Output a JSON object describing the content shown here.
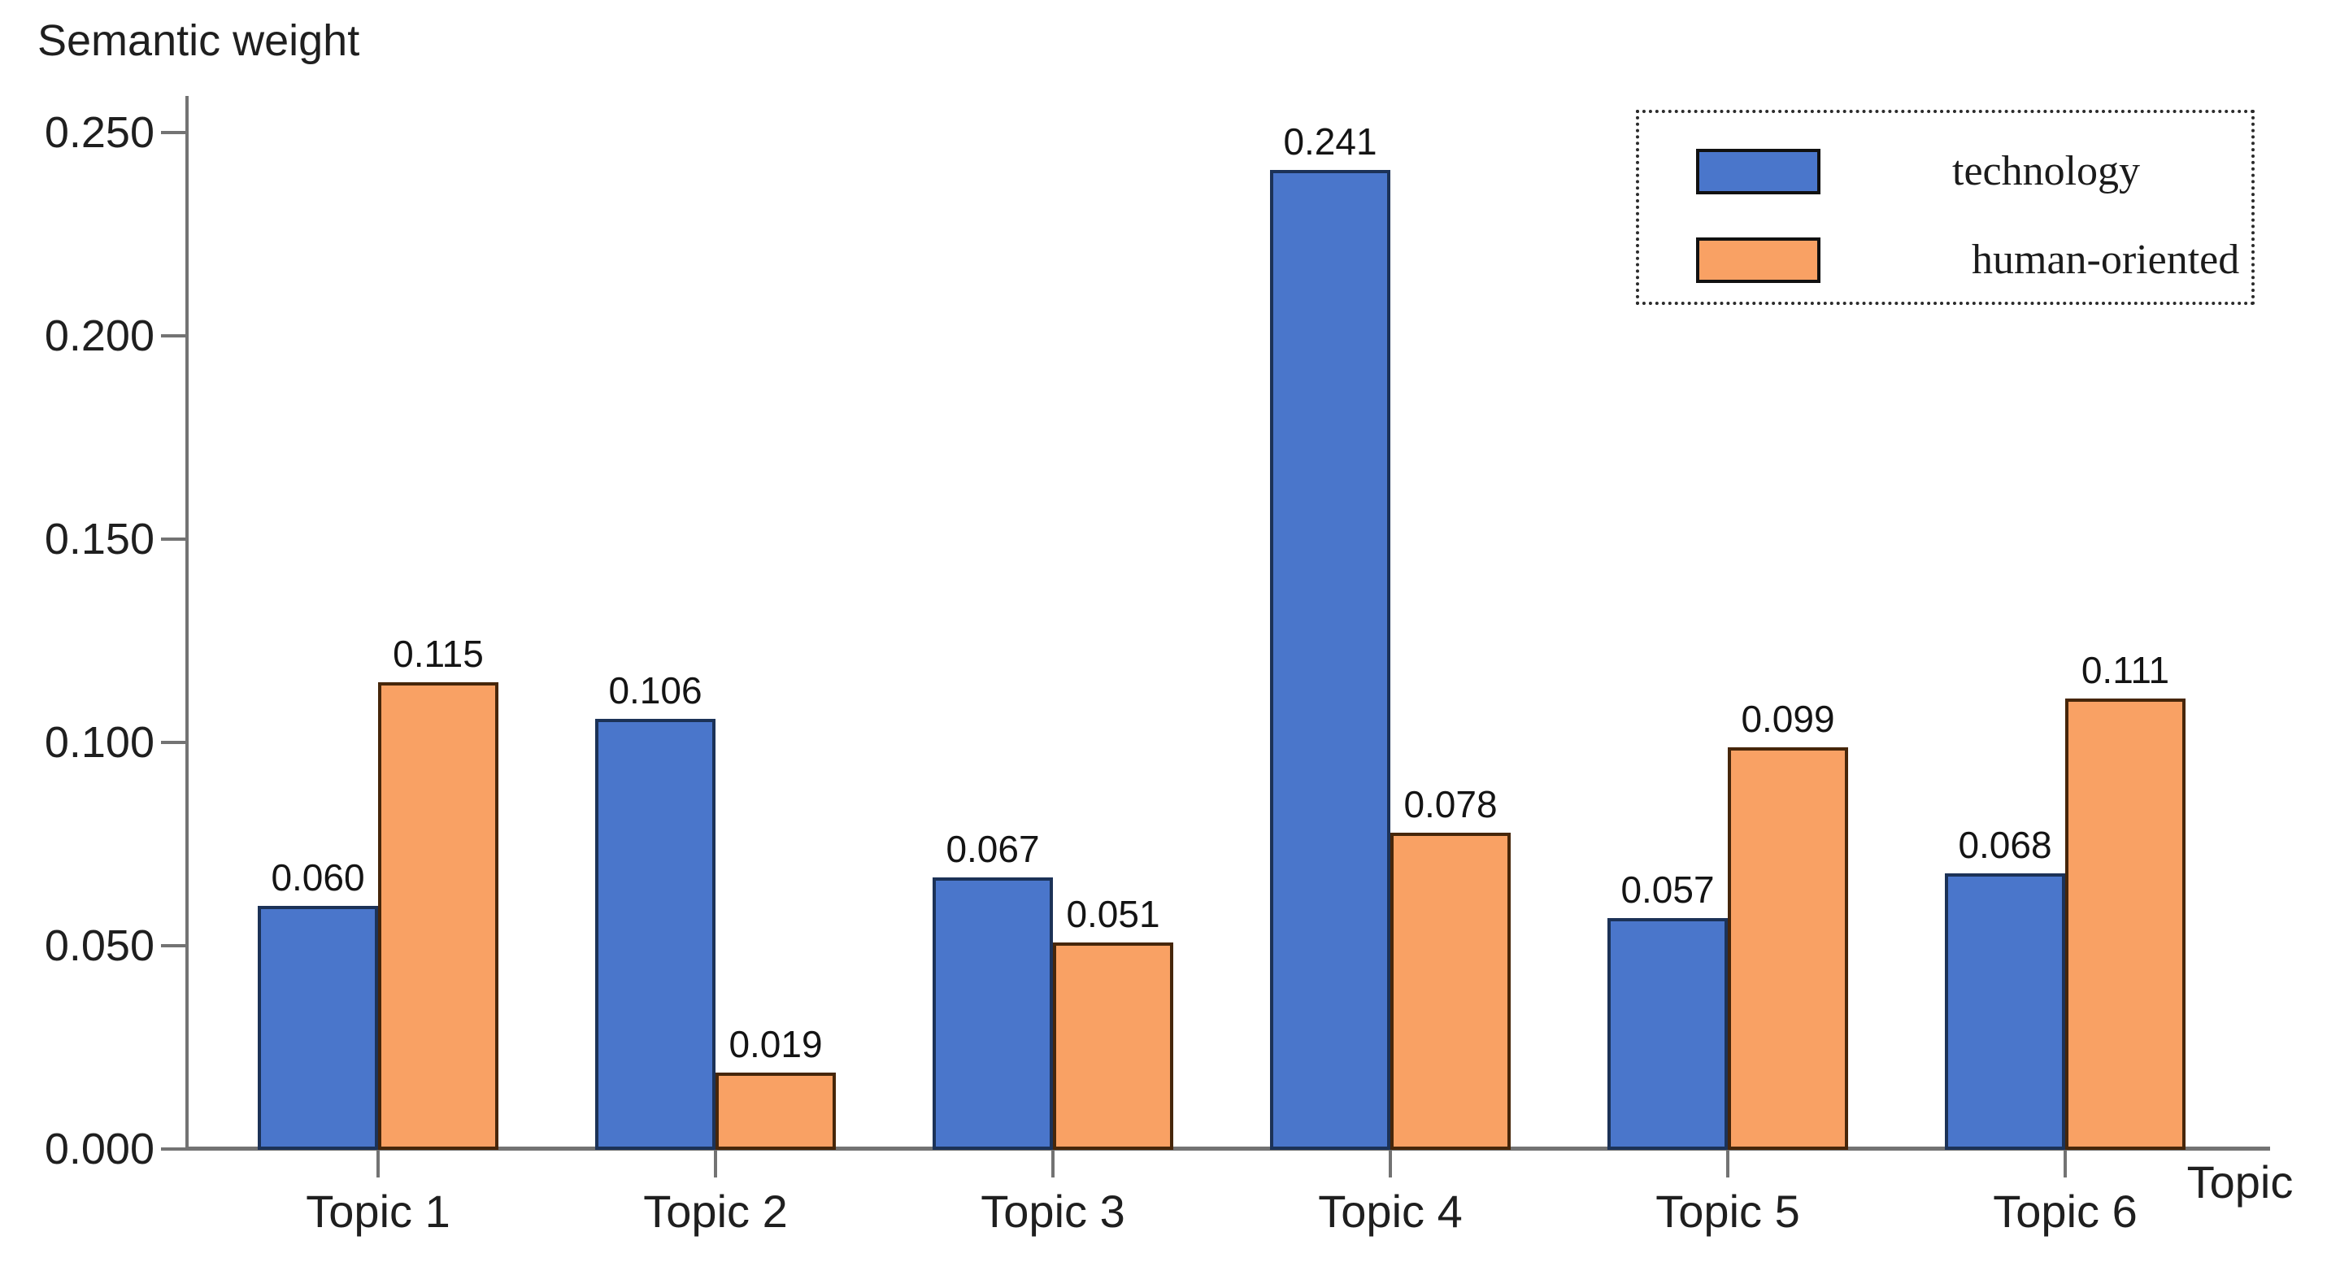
{
  "chart_data": {
    "type": "bar",
    "title": "Semantic weight",
    "ylabel": "Semantic weight",
    "xlabel": "Topic",
    "categories": [
      "Topic 1",
      "Topic 2",
      "Topic 3",
      "Topic 4",
      "Topic 5",
      "Topic 6"
    ],
    "series": [
      {
        "name": "technology",
        "color": "#4a76cb",
        "border_color": "#1c3257",
        "values": [
          0.06,
          0.106,
          0.067,
          0.241,
          0.057,
          0.068
        ]
      },
      {
        "name": "human-oriented",
        "color": "#f9a164",
        "border_color": "#46260a",
        "values": [
          0.115,
          0.019,
          0.051,
          0.078,
          0.099,
          0.111
        ]
      }
    ],
    "ylim": [
      0,
      0.25
    ],
    "yticks": [
      {
        "value": 0.0,
        "label": "0.000"
      },
      {
        "value": 0.05,
        "label": "0.050"
      },
      {
        "value": 0.1,
        "label": "0.100"
      },
      {
        "value": 0.15,
        "label": "0.150"
      },
      {
        "value": 0.2,
        "label": "0.200"
      },
      {
        "value": 0.25,
        "label": "0.250"
      }
    ],
    "value_label_decimals": 3,
    "grid": false,
    "legend": {
      "position": "top-right",
      "border_style": "dotted"
    },
    "axis_color": "#737373",
    "text_color": "#1f1f1f",
    "background_color": "#ffffff"
  }
}
